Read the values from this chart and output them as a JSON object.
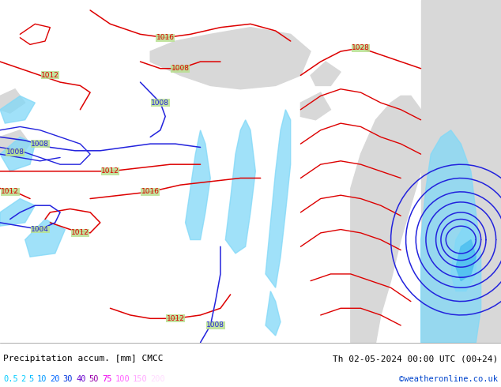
{
  "title_left": "Precipitation accum. [mm] CMCC",
  "title_right": "Th 02-05-2024 00:00 UTC (00+24)",
  "credit": "©weatheronline.co.uk",
  "legend_values": [
    "0.5",
    "2",
    "5",
    "10",
    "20",
    "30",
    "40",
    "50",
    "75",
    "100",
    "150",
    "200"
  ],
  "legend_colors": [
    "#00ccff",
    "#00ccff",
    "#00bbff",
    "#0099ff",
    "#0066ff",
    "#0033dd",
    "#6600cc",
    "#9900aa",
    "#ee00ee",
    "#ff66ff",
    "#ffaaff",
    "#ffddff"
  ],
  "bg_color": "#f0f0f0",
  "land_color": "#b8e090",
  "coast_color": "#c0c0b0",
  "sea_color": "#d8d8d8",
  "precip_color": "#80d8f8",
  "isobar_red": "#dd0000",
  "isobar_blue": "#2222dd",
  "figsize": [
    6.34,
    4.9
  ],
  "dpi": 100
}
